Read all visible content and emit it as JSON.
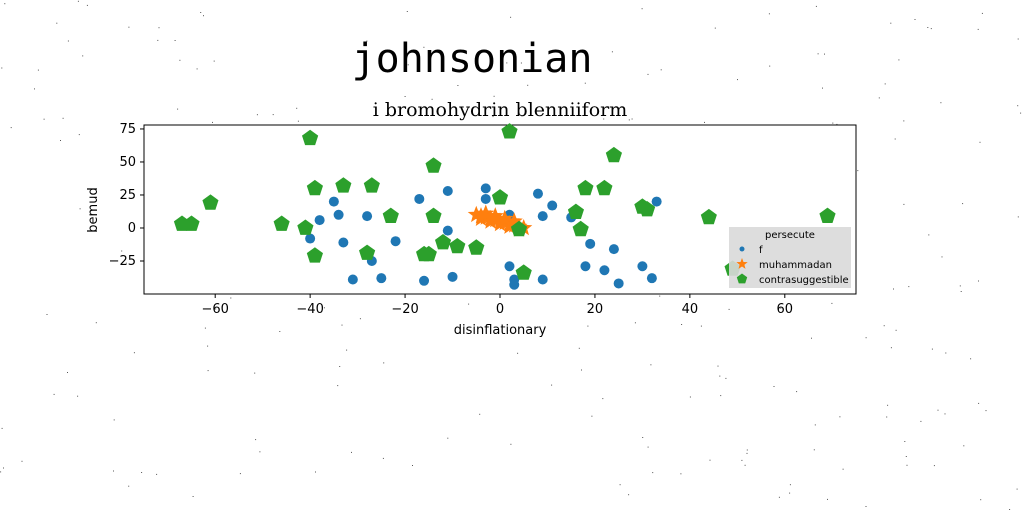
{
  "suptitle": "johnsonian",
  "chart_data": {
    "type": "scatter",
    "title": "i bromohydrin blenniiform",
    "xlabel": "disinflationary",
    "ylabel": "bemud",
    "xlim": [
      -75,
      75
    ],
    "ylim": [
      -50,
      78
    ],
    "xticks": [
      -60,
      -40,
      -20,
      0,
      20,
      40,
      60
    ],
    "yticks": [
      -25,
      0,
      25,
      50,
      75
    ],
    "grid": false,
    "legend": {
      "title": "persecute",
      "position": "lower right"
    },
    "series": [
      {
        "name": "f",
        "marker": "circle",
        "color": "#1f77b4",
        "points": [
          [
            -35,
            20
          ],
          [
            -34,
            10
          ],
          [
            -38,
            6
          ],
          [
            -33,
            -11
          ],
          [
            -28,
            9
          ],
          [
            -27,
            -25
          ],
          [
            -22,
            -10
          ],
          [
            -25,
            -38
          ],
          [
            -31,
            -39
          ],
          [
            -17,
            22
          ],
          [
            -16,
            -40
          ],
          [
            -11,
            -2
          ],
          [
            -11,
            28
          ],
          [
            -10,
            -37
          ],
          [
            -3,
            30
          ],
          [
            -3,
            22
          ],
          [
            2,
            10
          ],
          [
            2,
            -29
          ],
          [
            3,
            -39
          ],
          [
            3,
            -43
          ],
          [
            8,
            26
          ],
          [
            9,
            9
          ],
          [
            9,
            -39
          ],
          [
            11,
            17
          ],
          [
            15,
            8
          ],
          [
            19,
            -12
          ],
          [
            18,
            -29
          ],
          [
            22,
            -32
          ],
          [
            24,
            -16
          ],
          [
            25,
            -42
          ],
          [
            30,
            -29
          ],
          [
            32,
            -38
          ],
          [
            33,
            20
          ],
          [
            -40,
            -8
          ]
        ]
      },
      {
        "name": "muhammadan",
        "marker": "star",
        "color": "#ff7f0e",
        "points": [
          [
            -5,
            10
          ],
          [
            -4,
            9
          ],
          [
            -3,
            8
          ],
          [
            -2,
            7
          ],
          [
            -1,
            6
          ],
          [
            0,
            5
          ],
          [
            1,
            4
          ],
          [
            2,
            3
          ],
          [
            3,
            2
          ],
          [
            4,
            1
          ],
          [
            5,
            0
          ],
          [
            -4,
            7
          ],
          [
            -2,
            5
          ],
          [
            0,
            3
          ],
          [
            2,
            1
          ],
          [
            4,
            -1
          ],
          [
            -3,
            11
          ],
          [
            -1,
            9
          ],
          [
            1,
            7
          ],
          [
            3,
            5
          ]
        ]
      },
      {
        "name": "contrasuggestible",
        "marker": "pentagon",
        "color": "#2ca02c",
        "points": [
          [
            -40,
            68
          ],
          [
            -39,
            30
          ],
          [
            -33,
            32
          ],
          [
            -27,
            32
          ],
          [
            -41,
            0
          ],
          [
            -39,
            -21
          ],
          [
            -46,
            3
          ],
          [
            -61,
            19
          ],
          [
            -67,
            3
          ],
          [
            -65,
            3
          ],
          [
            -28,
            -19
          ],
          [
            -23,
            9
          ],
          [
            -14,
            47
          ],
          [
            -14,
            9
          ],
          [
            -16,
            -20
          ],
          [
            -15,
            -20
          ],
          [
            -12,
            -11
          ],
          [
            -9,
            -14
          ],
          [
            -5,
            -15
          ],
          [
            0,
            23
          ],
          [
            2,
            73
          ],
          [
            4,
            -1
          ],
          [
            5,
            -34
          ],
          [
            16,
            12
          ],
          [
            17,
            -1
          ],
          [
            18,
            30
          ],
          [
            22,
            30
          ],
          [
            24,
            55
          ],
          [
            30,
            16
          ],
          [
            31,
            14
          ],
          [
            44,
            8
          ],
          [
            49,
            -31
          ],
          [
            69,
            9
          ]
        ]
      }
    ]
  }
}
